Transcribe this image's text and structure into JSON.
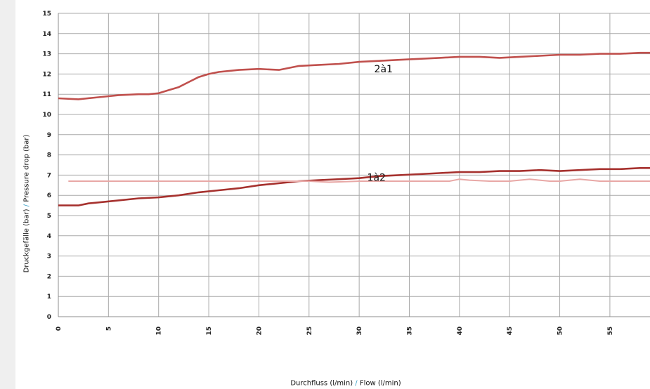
{
  "chart_data": {
    "type": "line",
    "ylabel_de": "Druckgefälle (bar)",
    "ylabel_sep": " / ",
    "ylabel_en": "Pressure drop (bar)",
    "xlabel_de": "Durchfluss (l/min)",
    "xlabel_sep": " / ",
    "xlabel_en": "Flow (l/min)",
    "xlim": [
      0,
      59
    ],
    "ylim": [
      0,
      15
    ],
    "xticks": [
      0,
      5,
      10,
      15,
      20,
      25,
      30,
      35,
      40,
      45,
      50,
      55
    ],
    "yticks": [
      0,
      1,
      2,
      3,
      4,
      5,
      6,
      7,
      8,
      9,
      10,
      11,
      12,
      13,
      14,
      15
    ],
    "grid": true,
    "series": [
      {
        "name": "2à1",
        "color": "#c0504d",
        "label_at": [
          31.5,
          12.25
        ],
        "x": [
          0,
          2,
          4,
          6,
          8,
          9,
          10,
          11,
          12,
          13,
          14,
          15,
          16,
          17,
          18,
          20,
          22,
          24,
          26,
          28,
          30,
          32,
          34,
          36,
          38,
          40,
          42,
          44,
          46,
          48,
          50,
          52,
          54,
          56,
          58,
          59
        ],
        "y": [
          10.8,
          10.75,
          10.85,
          10.95,
          11.0,
          11.0,
          11.05,
          11.2,
          11.35,
          11.6,
          11.85,
          12.0,
          12.1,
          12.15,
          12.2,
          12.25,
          12.2,
          12.4,
          12.45,
          12.5,
          12.6,
          12.65,
          12.7,
          12.75,
          12.8,
          12.85,
          12.85,
          12.8,
          12.85,
          12.9,
          12.95,
          12.95,
          13.0,
          13.0,
          13.05,
          13.05
        ]
      },
      {
        "name": "1à2",
        "color": "#a6312e",
        "label_at": [
          30.8,
          6.9
        ],
        "x": [
          0,
          1,
          2,
          3,
          4,
          6,
          8,
          10,
          12,
          14,
          16,
          18,
          20,
          22,
          24,
          26,
          28,
          30,
          32,
          34,
          36,
          38,
          40,
          42,
          44,
          46,
          48,
          50,
          52,
          54,
          56,
          58,
          59
        ],
        "y": [
          5.5,
          5.5,
          5.5,
          5.6,
          5.65,
          5.75,
          5.85,
          5.9,
          6.0,
          6.15,
          6.25,
          6.35,
          6.5,
          6.6,
          6.7,
          6.75,
          6.8,
          6.85,
          6.95,
          7.0,
          7.05,
          7.1,
          7.15,
          7.15,
          7.2,
          7.2,
          7.25,
          7.2,
          7.25,
          7.3,
          7.3,
          7.35,
          7.35
        ]
      },
      {
        "name": "",
        "color": "#e8a8a6",
        "x": [
          1,
          10,
          20,
          25,
          27,
          30,
          35,
          39,
          40,
          41,
          43,
          45,
          46,
          47,
          48,
          49,
          50,
          51,
          52,
          53,
          54,
          59
        ],
        "y": [
          6.7,
          6.7,
          6.7,
          6.7,
          6.65,
          6.7,
          6.7,
          6.7,
          6.8,
          6.75,
          6.7,
          6.7,
          6.75,
          6.8,
          6.75,
          6.7,
          6.7,
          6.75,
          6.8,
          6.75,
          6.7,
          6.7
        ]
      }
    ]
  }
}
